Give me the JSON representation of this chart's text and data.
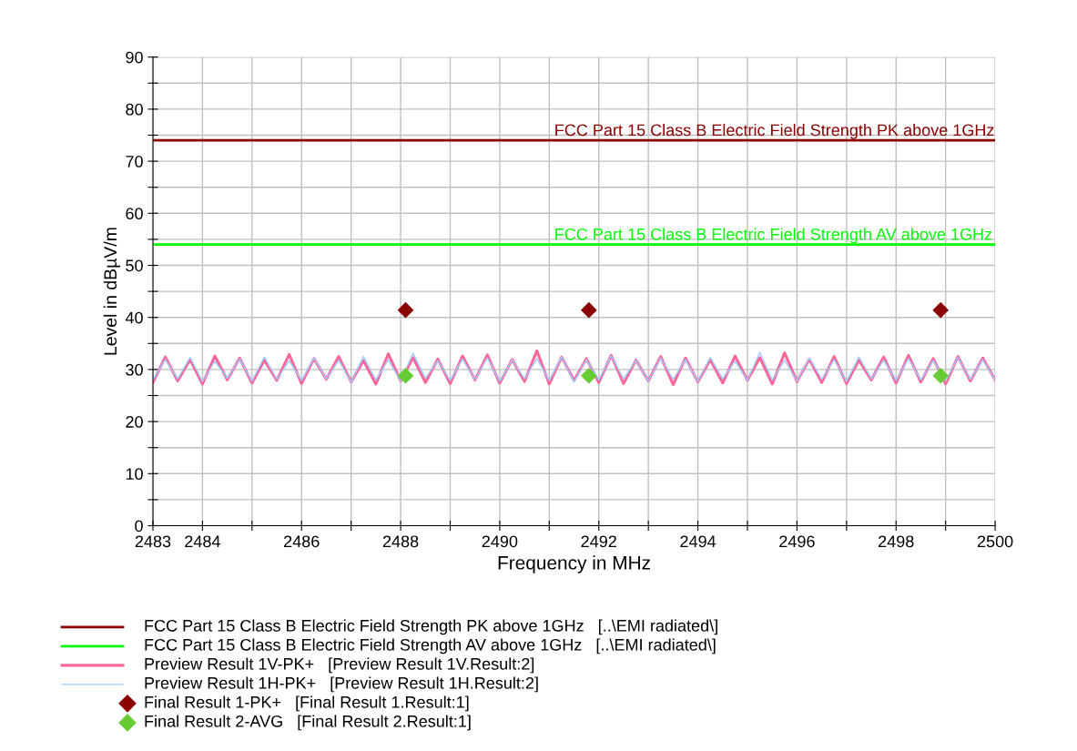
{
  "chart_data": {
    "type": "line",
    "xlabel": "Frequency in MHz",
    "ylabel": "Level in dBµV/m",
    "xlim": [
      2483,
      2500
    ],
    "ylim": [
      0,
      90
    ],
    "xticks": [
      2483,
      2484,
      {
        "value": 2485,
        "label": null
      },
      2486,
      {
        "value": 2487,
        "label": null
      },
      2488,
      {
        "value": 2489,
        "label": null
      },
      2490,
      {
        "value": 2491,
        "label": null
      },
      2492,
      {
        "value": 2493,
        "label": null
      },
      2494,
      {
        "value": 2495,
        "label": null
      },
      2496,
      {
        "value": 2497,
        "label": null
      },
      2498,
      {
        "value": 2499,
        "label": null
      },
      2500
    ],
    "yticks": [
      0,
      {
        "value": 5,
        "label": null
      },
      10,
      {
        "value": 15,
        "label": null
      },
      20,
      {
        "value": 25,
        "label": null
      },
      30,
      {
        "value": 35,
        "label": null
      },
      40,
      {
        "value": 45,
        "label": null
      },
      50,
      {
        "value": 55,
        "label": null
      },
      60,
      {
        "value": 65,
        "label": null
      },
      70,
      {
        "value": 75,
        "label": null
      },
      80,
      {
        "value": 85,
        "label": null
      },
      90
    ],
    "grid": true,
    "legend": "bottom",
    "x": [
      2483,
      2483.25,
      2483.5,
      2483.75,
      2484,
      2484.25,
      2484.5,
      2484.75,
      2485,
      2485.25,
      2485.5,
      2485.75,
      2486,
      2486.25,
      2486.5,
      2486.75,
      2487,
      2487.25,
      2487.5,
      2487.75,
      2488,
      2488.25,
      2488.5,
      2488.75,
      2489,
      2489.25,
      2489.5,
      2489.75,
      2490,
      2490.25,
      2490.5,
      2490.75,
      2491,
      2491.25,
      2491.5,
      2491.75,
      2492,
      2492.25,
      2492.5,
      2492.75,
      2493,
      2493.25,
      2493.5,
      2493.75,
      2494,
      2494.25,
      2494.5,
      2494.75,
      2495,
      2495.25,
      2495.5,
      2495.75,
      2496,
      2496.25,
      2496.5,
      2496.75,
      2497,
      2497.25,
      2497.5,
      2497.75,
      2498,
      2498.25,
      2498.5,
      2498.75,
      2499,
      2499.25,
      2499.5,
      2499.75,
      2500
    ],
    "series": [
      {
        "name": "FCC Part 15 Class B Electric Field Strength PK above 1GHz   [..\\EMI radiated\\]",
        "type": "line",
        "color": "#8b0000",
        "x": [
          2483,
          2500
        ],
        "values": [
          74,
          74
        ]
      },
      {
        "name": "FCC Part 15 Class B Electric Field Strength AV above 1GHz   [..\\EMI radiated\\]",
        "type": "line",
        "color": "#00ff00",
        "x": [
          2483,
          2500
        ],
        "values": [
          54,
          54
        ]
      },
      {
        "name": "Preview Result 1V-PK+   [Preview Result 1V.Result:2]",
        "color": "#ff6699",
        "values": [
          27.5,
          32.4,
          27.8,
          31.9,
          27.2,
          32.6,
          28.0,
          32.2,
          27.4,
          31.8,
          27.9,
          32.9,
          27.3,
          32.1,
          28.1,
          32.5,
          27.6,
          31.7,
          27.2,
          33.0,
          27.8,
          32.3,
          27.5,
          32.0,
          27.3,
          32.6,
          28.0,
          32.8,
          27.4,
          31.9,
          27.7,
          33.6,
          27.2,
          32.4,
          27.9,
          32.1,
          27.5,
          32.7,
          27.3,
          31.8,
          27.8,
          32.5,
          27.1,
          32.2,
          27.6,
          31.9,
          27.4,
          32.6,
          27.9,
          32.3,
          27.2,
          33.2,
          27.7,
          32.0,
          27.5,
          32.5,
          27.3,
          31.8,
          28.0,
          32.4,
          27.4,
          32.7,
          27.6,
          32.1,
          27.2,
          32.5,
          27.8,
          32.2,
          28.0
        ]
      },
      {
        "name": "Preview Result 1H-PK+   [Preview Result 1H.Result:2]",
        "color": "#99ccff",
        "values": [
          28.0,
          31.9,
          28.2,
          32.3,
          27.7,
          31.6,
          28.3,
          32.0,
          27.8,
          32.4,
          28.1,
          31.7,
          27.9,
          32.2,
          28.2,
          31.8,
          27.6,
          32.5,
          28.0,
          31.9,
          27.8,
          33.1,
          28.3,
          31.7,
          27.9,
          32.0,
          28.1,
          32.3,
          27.7,
          31.8,
          28.2,
          32.1,
          27.9,
          32.4,
          27.6,
          31.9,
          28.0,
          32.6,
          28.2,
          31.7,
          27.8,
          32.2,
          28.1,
          31.9,
          27.7,
          32.3,
          28.2,
          31.6,
          27.9,
          33.3,
          28.0,
          31.8,
          27.8,
          32.2,
          28.1,
          31.9,
          27.7,
          32.4,
          28.2,
          31.8,
          27.9,
          32.1,
          28.0,
          31.7,
          27.8,
          32.3,
          28.1,
          31.9,
          28.0
        ]
      },
      {
        "name": "Final Result 1-PK+   [Final Result 1.Result:1]",
        "type": "scatter",
        "marker": "diamond",
        "color": "#8b0000",
        "x": [
          2488.1,
          2491.8,
          2498.9
        ],
        "values": [
          41.4,
          41.4,
          41.4
        ]
      },
      {
        "name": "Final Result 2-AVG   [Final Result 2.Result:1]",
        "type": "scatter",
        "marker": "diamond",
        "color": "#66cc33",
        "x": [
          2488.1,
          2491.8,
          2498.9
        ],
        "values": [
          28.8,
          28.8,
          28.8
        ]
      }
    ],
    "annotations": [
      {
        "text": "FCC Part 15 Class B Electric Field Strength PK above 1GHz",
        "x": 2491.1,
        "y": 74
      },
      {
        "text": "FCC Part 15 Class B Electric Field Strength AV above 1GHz",
        "x": 2491.1,
        "y": 54
      }
    ]
  }
}
